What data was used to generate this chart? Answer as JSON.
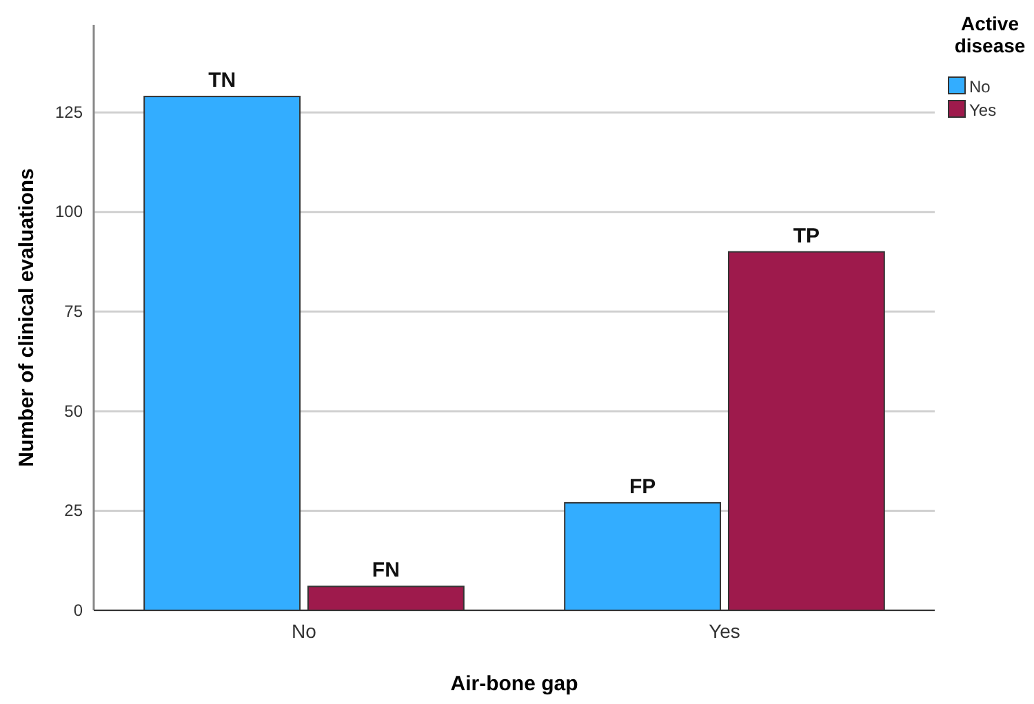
{
  "chart_data": {
    "type": "bar",
    "xlabel": "Air-bone gap",
    "ylabel": "Number of clinical evaluations",
    "legend_title": "Active disease",
    "categories": [
      "No",
      "Yes"
    ],
    "series": [
      {
        "name": "No",
        "color": "#33adff",
        "values": [
          129,
          27
        ],
        "value_labels": [
          "TN",
          "FP"
        ]
      },
      {
        "name": "Yes",
        "color": "#9e1a4c",
        "values": [
          6,
          90
        ],
        "value_labels": [
          "FN",
          "TP"
        ]
      }
    ],
    "ylim": [
      0,
      147
    ],
    "yticks": [
      0,
      25,
      50,
      75,
      100,
      125
    ],
    "grid": "y",
    "legend": "top right"
  }
}
